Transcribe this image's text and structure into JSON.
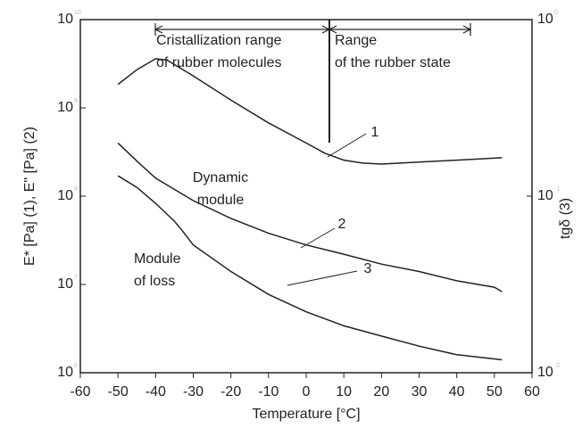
{
  "chart_data": {
    "type": "line",
    "xlabel": "Temperature [°C]",
    "ylabel": "E* [Pa] (1), E\" [Pa] (2)",
    "y2label": "tgδ (3)",
    "xlim": [
      -60,
      60
    ],
    "xticks": [
      -60,
      -50,
      -40,
      -30,
      -20,
      -10,
      0,
      10,
      20,
      30,
      40,
      50,
      60
    ],
    "ylim": [
      1000000,
      10000000000
    ],
    "ylog": true,
    "yticks": [
      {
        "value": 10000000000,
        "label": "10",
        "exponent": "10"
      },
      {
        "value": 1000000000,
        "label": "10",
        "exponent": "9"
      },
      {
        "value": 100000000,
        "label": "10",
        "exponent": "8"
      },
      {
        "value": 10000000,
        "label": "10",
        "exponent": "7"
      },
      {
        "value": 1000000,
        "label": "10",
        "exponent": "6"
      }
    ],
    "y2lim": [
      0.01,
      1
    ],
    "y2log": true,
    "y2ticks": [
      {
        "value": 1,
        "label": "10",
        "exponent": "0"
      },
      {
        "value": 0.1,
        "label": "10",
        "exponent": "-1"
      },
      {
        "value": 0.01,
        "label": "10",
        "exponent": "-2"
      }
    ],
    "series": [
      {
        "name": "1",
        "color": "#222222",
        "x": [
          -50,
          -45,
          -40,
          -30,
          -20,
          -10,
          0,
          10,
          20,
          30,
          40,
          50,
          52
        ],
        "values": [
          400000000,
          250000000,
          160000000,
          89000000,
          56000000,
          38000000,
          28000000,
          22000000,
          17000000,
          14000000,
          11000000,
          9300000,
          8300000
        ]
      },
      {
        "name": "2",
        "color": "#222222",
        "x": [
          -50,
          -45,
          -40,
          -35,
          -33,
          -30,
          -20,
          -10,
          0,
          10,
          20,
          30,
          40,
          52
        ],
        "values": [
          170000000,
          126000000,
          83000000,
          52000000,
          41000000,
          28000000,
          14000000,
          7700000,
          4900000,
          3400000,
          2600000,
          2000000,
          1600000,
          1400000
        ]
      },
      {
        "name": "3",
        "color": "#222222",
        "axis": "y2",
        "x": [
          -50,
          -45,
          -40,
          -37,
          -30,
          -20,
          -10,
          0,
          5,
          10,
          15,
          20,
          30,
          40,
          52
        ],
        "values": [
          0.43,
          0.52,
          0.6,
          0.59,
          0.48,
          0.35,
          0.26,
          0.2,
          0.175,
          0.16,
          0.154,
          0.152,
          0.156,
          0.16,
          0.165
        ]
      }
    ],
    "annotations": [
      [
        "Dynamic",
        "module"
      ],
      [
        "Module",
        "of loss"
      ],
      [
        "Cristallization range",
        "of rubber molecules"
      ],
      [
        "Range",
        "of the rubber state"
      ]
    ]
  }
}
